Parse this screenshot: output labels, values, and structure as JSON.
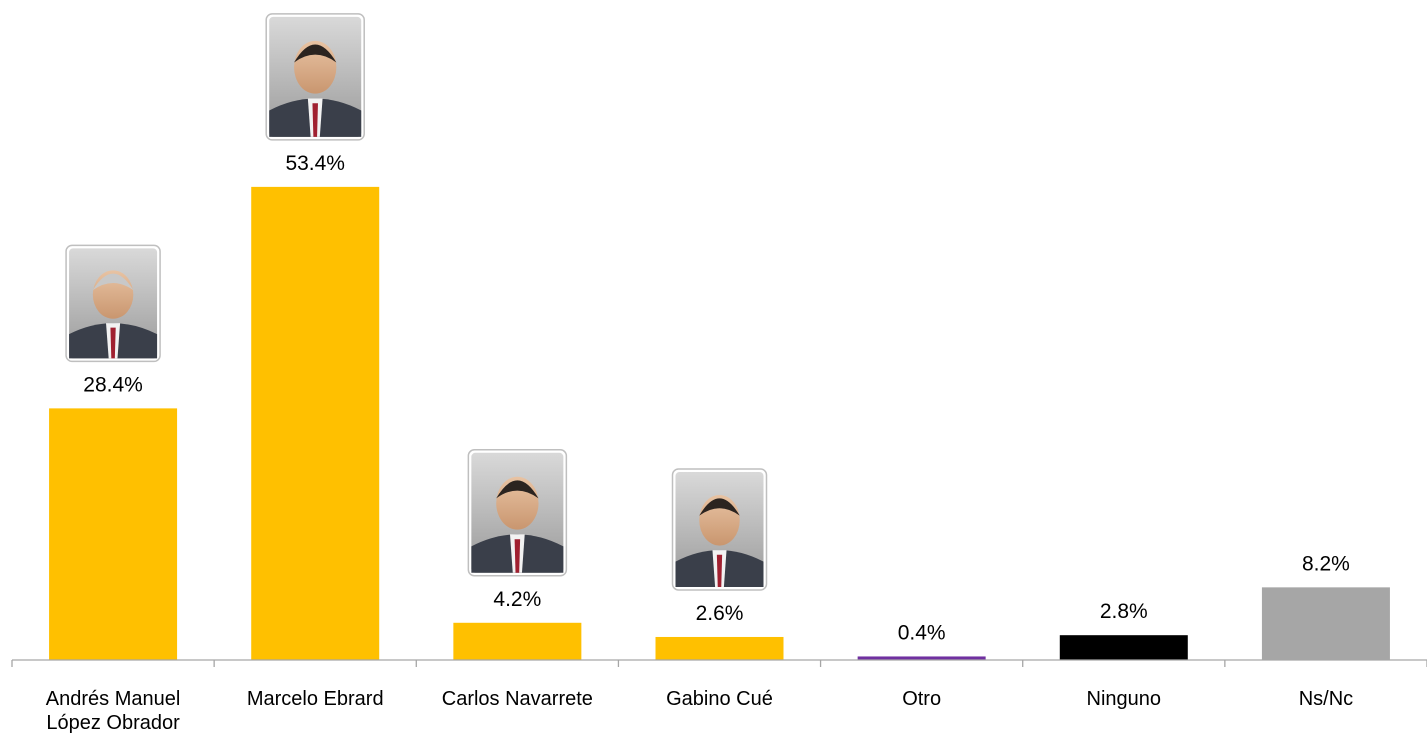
{
  "chart_data": {
    "type": "bar",
    "title": "",
    "xlabel": "",
    "ylabel": "",
    "ylim": [
      0,
      60
    ],
    "grid": false,
    "legend": "none",
    "value_suffix": "%",
    "categories": [
      [
        "Andrés Manuel",
        "López Obrador"
      ],
      [
        "Marcelo Ebrard"
      ],
      [
        "Carlos Navarrete"
      ],
      [
        "Gabino Cué"
      ],
      [
        "Otro"
      ],
      [
        "Ninguno"
      ],
      [
        "Ns/Nc"
      ]
    ],
    "values": [
      28.4,
      53.4,
      4.2,
      2.6,
      0.4,
      2.8,
      8.2
    ],
    "value_labels": [
      "28.4%",
      "53.4%",
      "4.2%",
      "2.6%",
      "0.4%",
      "2.8%",
      "8.2%"
    ],
    "colors": [
      "#FFC000",
      "#FFC000",
      "#FFC000",
      "#FFC000",
      "#7030A0",
      "#000000",
      "#A6A6A6"
    ],
    "portraits": [
      "candidate-portrait",
      "candidate-portrait",
      "candidate-portrait",
      "candidate-portrait",
      null,
      null,
      null
    ]
  }
}
